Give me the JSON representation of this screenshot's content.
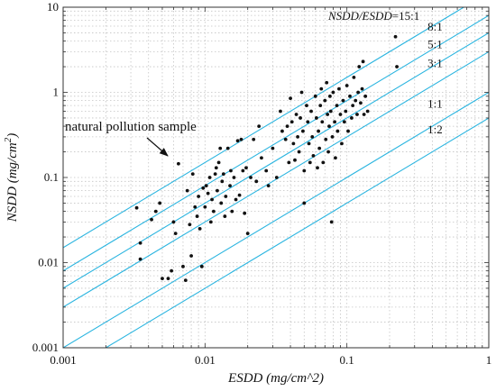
{
  "chart_data": {
    "type": "scatter",
    "x_scale": "log",
    "y_scale": "log",
    "xlim": [
      0.001,
      1
    ],
    "ylim": [
      0.001,
      10
    ],
    "grid": true,
    "xlabel": "ESDD (mg/cm^2)",
    "ylabel_main": "NSDD (mg/cm",
    "ylabel_sup": "2",
    "ylabel_close": ")",
    "x_ticks": [
      {
        "value": 0.001,
        "label": "0.001"
      },
      {
        "value": 0.01,
        "label": "0.01"
      },
      {
        "value": 0.1,
        "label": "0.1"
      },
      {
        "value": 1,
        "label": "1"
      }
    ],
    "y_ticks": [
      {
        "value": 0.001,
        "label": "0.001"
      },
      {
        "value": 0.01,
        "label": "0.01"
      },
      {
        "value": 0.1,
        "label": "0.1"
      },
      {
        "value": 1,
        "label": "1"
      },
      {
        "value": 10,
        "label": "10"
      }
    ],
    "ratio_lines": [
      {
        "ratio": 15,
        "label": "NSDD/ESDD=15:1"
      },
      {
        "ratio": 8,
        "label": "8:1"
      },
      {
        "ratio": 5,
        "label": "5:1"
      },
      {
        "ratio": 3,
        "label": "3:1"
      },
      {
        "ratio": 1,
        "label": "1:1"
      },
      {
        "ratio": 0.5,
        "label": "1:2"
      }
    ],
    "line_color": "#2bb5e0",
    "point_color": "#111111",
    "annotation": {
      "text": "natural pollution sample",
      "target": [
        0.0065,
        0.145
      ]
    },
    "points": [
      [
        0.0033,
        0.044
      ],
      [
        0.0035,
        0.017
      ],
      [
        0.0035,
        0.011
      ],
      [
        0.0042,
        0.032
      ],
      [
        0.0045,
        0.04
      ],
      [
        0.0048,
        0.05
      ],
      [
        0.005,
        0.0065
      ],
      [
        0.0055,
        0.0065
      ],
      [
        0.0058,
        0.008
      ],
      [
        0.006,
        0.03
      ],
      [
        0.0062,
        0.022
      ],
      [
        0.0065,
        0.145
      ],
      [
        0.007,
        0.009
      ],
      [
        0.0073,
        0.0062
      ],
      [
        0.0075,
        0.07
      ],
      [
        0.0078,
        0.028
      ],
      [
        0.008,
        0.012
      ],
      [
        0.0082,
        0.11
      ],
      [
        0.0085,
        0.045
      ],
      [
        0.0088,
        0.035
      ],
      [
        0.009,
        0.06
      ],
      [
        0.0092,
        0.025
      ],
      [
        0.0095,
        0.009
      ],
      [
        0.0097,
        0.075
      ],
      [
        0.01,
        0.045
      ],
      [
        0.0102,
        0.08
      ],
      [
        0.0105,
        0.065
      ],
      [
        0.0108,
        0.1
      ],
      [
        0.011,
        0.03
      ],
      [
        0.0112,
        0.055
      ],
      [
        0.0115,
        0.04
      ],
      [
        0.0118,
        0.11
      ],
      [
        0.012,
        0.13
      ],
      [
        0.0122,
        0.07
      ],
      [
        0.0125,
        0.15
      ],
      [
        0.0128,
        0.22
      ],
      [
        0.013,
        0.05
      ],
      [
        0.0132,
        0.09
      ],
      [
        0.0135,
        0.11
      ],
      [
        0.0138,
        0.035
      ],
      [
        0.014,
        0.06
      ],
      [
        0.0145,
        0.22
      ],
      [
        0.015,
        0.08
      ],
      [
        0.0152,
        0.12
      ],
      [
        0.0155,
        0.04
      ],
      [
        0.016,
        0.1
      ],
      [
        0.0165,
        0.055
      ],
      [
        0.017,
        0.27
      ],
      [
        0.0175,
        0.062
      ],
      [
        0.018,
        0.28
      ],
      [
        0.0185,
        0.12
      ],
      [
        0.019,
        0.038
      ],
      [
        0.0195,
        0.13
      ],
      [
        0.02,
        0.022
      ],
      [
        0.021,
        0.1
      ],
      [
        0.022,
        0.28
      ],
      [
        0.023,
        0.09
      ],
      [
        0.024,
        0.4
      ],
      [
        0.025,
        0.17
      ],
      [
        0.027,
        0.12
      ],
      [
        0.028,
        0.08
      ],
      [
        0.03,
        0.22
      ],
      [
        0.032,
        0.1
      ],
      [
        0.034,
        0.6
      ],
      [
        0.035,
        0.35
      ],
      [
        0.037,
        0.28
      ],
      [
        0.038,
        0.4
      ],
      [
        0.039,
        0.15
      ],
      [
        0.04,
        0.85
      ],
      [
        0.041,
        0.45
      ],
      [
        0.042,
        0.25
      ],
      [
        0.043,
        0.16
      ],
      [
        0.044,
        0.55
      ],
      [
        0.045,
        0.3
      ],
      [
        0.046,
        0.2
      ],
      [
        0.047,
        0.5
      ],
      [
        0.048,
        1.0
      ],
      [
        0.049,
        0.35
      ],
      [
        0.05,
        0.12
      ],
      [
        0.05,
        0.05
      ],
      [
        0.052,
        0.7
      ],
      [
        0.053,
        0.45
      ],
      [
        0.054,
        0.25
      ],
      [
        0.055,
        0.15
      ],
      [
        0.056,
        0.6
      ],
      [
        0.057,
        0.3
      ],
      [
        0.058,
        0.18
      ],
      [
        0.06,
        0.9
      ],
      [
        0.061,
        0.5
      ],
      [
        0.062,
        0.13
      ],
      [
        0.063,
        0.35
      ],
      [
        0.064,
        0.22
      ],
      [
        0.065,
        0.7
      ],
      [
        0.066,
        1.1
      ],
      [
        0.067,
        0.45
      ],
      [
        0.068,
        0.15
      ],
      [
        0.07,
        0.8
      ],
      [
        0.071,
        0.28
      ],
      [
        0.072,
        1.3
      ],
      [
        0.073,
        0.55
      ],
      [
        0.074,
        0.2
      ],
      [
        0.075,
        0.4
      ],
      [
        0.076,
        0.9
      ],
      [
        0.077,
        0.6
      ],
      [
        0.078,
        0.03
      ],
      [
        0.079,
        0.3
      ],
      [
        0.08,
        1.0
      ],
      [
        0.082,
        0.45
      ],
      [
        0.083,
        0.17
      ],
      [
        0.085,
        0.7
      ],
      [
        0.086,
        0.35
      ],
      [
        0.088,
        1.1
      ],
      [
        0.09,
        0.55
      ],
      [
        0.092,
        0.25
      ],
      [
        0.094,
        0.8
      ],
      [
        0.096,
        0.45
      ],
      [
        0.098,
        0.6
      ],
      [
        0.1,
        1.2
      ],
      [
        0.102,
        0.35
      ],
      [
        0.105,
        0.9
      ],
      [
        0.108,
        0.5
      ],
      [
        0.11,
        0.7
      ],
      [
        0.112,
        1.5
      ],
      [
        0.115,
        0.8
      ],
      [
        0.118,
        0.55
      ],
      [
        0.12,
        1.0
      ],
      [
        0.122,
        2.0
      ],
      [
        0.125,
        0.75
      ],
      [
        0.128,
        1.1
      ],
      [
        0.13,
        2.3
      ],
      [
        0.132,
        0.55
      ],
      [
        0.135,
        0.9
      ],
      [
        0.14,
        0.6
      ],
      [
        0.22,
        4.5
      ],
      [
        0.225,
        2.0
      ]
    ]
  }
}
